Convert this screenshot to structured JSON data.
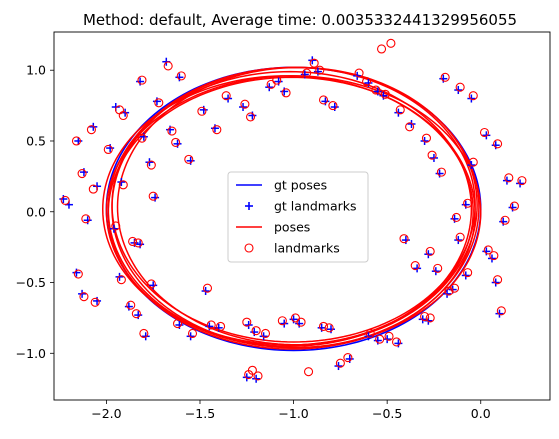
{
  "chart_data": {
    "type": "scatter",
    "title": "Method: default, Average time: 0.0035332441329956055",
    "xlabel": "",
    "ylabel": "",
    "xlim": [
      -2.28,
      0.37
    ],
    "ylim": [
      -1.33,
      1.27
    ],
    "grid": false,
    "x_ticks": [
      -2.0,
      -1.5,
      -1.0,
      -0.5,
      0.0
    ],
    "x_tick_labels": [
      "−2.0",
      "−1.5",
      "−1.0",
      "−0.5",
      "0.0"
    ],
    "y_ticks": [
      -1.0,
      -0.5,
      0.0,
      0.5,
      1.0
    ],
    "y_tick_labels": [
      "−1.0",
      "−0.5",
      "0.0",
      "0.5",
      "1.0"
    ],
    "legend_position": "center",
    "legend": [
      {
        "label": "gt poses",
        "style": "line",
        "color": "#0000ff"
      },
      {
        "label": "gt landmarks",
        "style": "plus",
        "color": "#0000ff"
      },
      {
        "label": "poses",
        "style": "line",
        "color": "#ff0000"
      },
      {
        "label": "landmarks",
        "style": "circle",
        "color": "#ff0000"
      }
    ],
    "series": [
      {
        "name": "gt poses",
        "kind": "ellipse",
        "color": "#0000ff",
        "center": [
          -1.0,
          0.02
        ],
        "radii": [
          1.0,
          1.0
        ],
        "rotation_deg": 0
      },
      {
        "name": "poses",
        "kind": "ellipse_loops",
        "color": "#ff0000",
        "loops": [
          {
            "center": [
              -1.02,
              0.02
            ],
            "radii": [
              0.97,
              0.97
            ],
            "rotation_deg": -4
          },
          {
            "center": [
              -0.99,
              0.03
            ],
            "radii": [
              0.98,
              0.99
            ],
            "rotation_deg": -8
          },
          {
            "center": [
              -1.0,
              0.0
            ],
            "radii": [
              1.0,
              0.96
            ],
            "rotation_deg": -3
          },
          {
            "center": [
              -0.98,
              0.04
            ],
            "radii": [
              0.96,
              0.98
            ],
            "rotation_deg": -10
          },
          {
            "center": [
              -1.03,
              0.01
            ],
            "radii": [
              0.99,
              0.95
            ],
            "rotation_deg": -6
          },
          {
            "center": [
              -1.0,
              0.05
            ],
            "radii": [
              0.97,
              0.97
            ],
            "rotation_deg": -12
          },
          {
            "center": [
              -1.01,
              -0.01
            ],
            "radii": [
              0.98,
              0.96
            ],
            "rotation_deg": -2
          }
        ]
      },
      {
        "name": "gt landmarks",
        "kind": "plus",
        "color": "#0000ff",
        "points": [
          [
            -2.23,
            0.09
          ],
          [
            -2.15,
            0.5
          ],
          [
            -2.07,
            0.6
          ],
          [
            -2.12,
            0.28
          ],
          [
            -2.05,
            0.18
          ],
          [
            -2.1,
            -0.06
          ],
          [
            -2.16,
            -0.43
          ],
          [
            -2.13,
            -0.58
          ],
          [
            -2.05,
            -0.63
          ],
          [
            -1.95,
            0.74
          ],
          [
            -1.9,
            0.7
          ],
          [
            -1.98,
            0.45
          ],
          [
            -1.92,
            0.21
          ],
          [
            -1.96,
            -0.12
          ],
          [
            -1.85,
            -0.22
          ],
          [
            -1.93,
            -0.46
          ],
          [
            -1.88,
            -0.67
          ],
          [
            -1.83,
            -0.73
          ],
          [
            -1.82,
            0.92
          ],
          [
            -1.73,
            0.78
          ],
          [
            -1.8,
            0.53
          ],
          [
            -1.77,
            0.35
          ],
          [
            -1.74,
            0.1
          ],
          [
            -1.82,
            -0.23
          ],
          [
            -1.75,
            -0.52
          ],
          [
            -1.79,
            -0.88
          ],
          [
            -1.68,
            1.06
          ],
          [
            -1.61,
            0.95
          ],
          [
            -1.62,
            0.48
          ],
          [
            -1.55,
            0.36
          ],
          [
            -1.66,
            0.58
          ],
          [
            -1.61,
            -0.8
          ],
          [
            -1.55,
            -0.88
          ],
          [
            -1.48,
            0.72
          ],
          [
            -1.42,
            0.59
          ],
          [
            -1.47,
            -0.56
          ],
          [
            -1.45,
            -0.81
          ],
          [
            -1.4,
            -0.82
          ],
          [
            -1.35,
            0.8
          ],
          [
            -1.27,
            0.74
          ],
          [
            -1.22,
            0.68
          ],
          [
            -1.24,
            -0.8
          ],
          [
            -1.21,
            -0.85
          ],
          [
            -1.25,
            -1.17
          ],
          [
            -1.2,
            -1.18
          ],
          [
            -1.16,
            -0.88
          ],
          [
            -1.13,
            0.88
          ],
          [
            -1.08,
            0.92
          ],
          [
            -1.05,
            0.85
          ],
          [
            -1.05,
            -0.79
          ],
          [
            -1.0,
            -0.76
          ],
          [
            -0.97,
            -0.79
          ],
          [
            -0.94,
            0.97
          ],
          [
            -0.9,
            1.07
          ],
          [
            -0.87,
            0.99
          ],
          [
            -0.83,
            0.78
          ],
          [
            -0.78,
            0.74
          ],
          [
            -0.85,
            -0.82
          ],
          [
            -0.8,
            -0.83
          ],
          [
            -0.76,
            -1.09
          ],
          [
            -0.7,
            -1.04
          ],
          [
            -0.66,
            0.96
          ],
          [
            -0.6,
            0.91
          ],
          [
            -0.55,
            0.85
          ],
          [
            -0.52,
            0.82
          ],
          [
            -0.6,
            -0.88
          ],
          [
            -0.55,
            -0.91
          ],
          [
            -0.5,
            -0.9
          ],
          [
            -0.44,
            -0.93
          ],
          [
            -0.44,
            0.7
          ],
          [
            -0.37,
            0.62
          ],
          [
            -0.4,
            -0.2
          ],
          [
            -0.34,
            -0.4
          ],
          [
            -0.31,
            -0.76
          ],
          [
            -0.28,
            -0.77
          ],
          [
            -0.2,
            0.94
          ],
          [
            -0.12,
            0.86
          ],
          [
            -0.05,
            0.8
          ],
          [
            -0.3,
            0.5
          ],
          [
            -0.25,
            0.38
          ],
          [
            -0.22,
            0.27
          ],
          [
            -0.28,
            -0.3
          ],
          [
            -0.24,
            -0.42
          ],
          [
            -0.18,
            -0.58
          ],
          [
            -0.15,
            -0.55
          ],
          [
            -0.08,
            -0.45
          ],
          [
            -0.12,
            -0.2
          ],
          [
            -0.14,
            -0.05
          ],
          [
            -0.08,
            0.05
          ],
          [
            -0.05,
            0.33
          ],
          [
            0.03,
            0.54
          ],
          [
            0.08,
            0.47
          ],
          [
            0.03,
            -0.28
          ],
          [
            0.06,
            -0.33
          ],
          [
            0.08,
            -0.5
          ],
          [
            0.1,
            -0.72
          ],
          [
            0.14,
            0.22
          ],
          [
            0.17,
            0.03
          ],
          [
            0.21,
            0.2
          ],
          [
            0.12,
            -0.07
          ],
          [
            -2.2,
            0.05
          ]
        ]
      },
      {
        "name": "landmarks",
        "kind": "circle",
        "color": "#ff0000",
        "points": [
          [
            -2.22,
            0.08
          ],
          [
            -2.16,
            0.5
          ],
          [
            -2.08,
            0.58
          ],
          [
            -2.13,
            0.27
          ],
          [
            -2.07,
            0.16
          ],
          [
            -2.11,
            -0.05
          ],
          [
            -2.15,
            -0.44
          ],
          [
            -2.12,
            -0.6
          ],
          [
            -2.06,
            -0.64
          ],
          [
            -1.93,
            0.72
          ],
          [
            -1.91,
            0.68
          ],
          [
            -1.99,
            0.44
          ],
          [
            -1.91,
            0.19
          ],
          [
            -1.95,
            -0.1
          ],
          [
            -1.86,
            -0.21
          ],
          [
            -1.92,
            -0.48
          ],
          [
            -1.87,
            -0.66
          ],
          [
            -1.84,
            -0.72
          ],
          [
            -1.81,
            0.93
          ],
          [
            -1.72,
            0.77
          ],
          [
            -1.81,
            0.52
          ],
          [
            -1.76,
            0.33
          ],
          [
            -1.75,
            0.11
          ],
          [
            -1.83,
            -0.22
          ],
          [
            -1.76,
            -0.51
          ],
          [
            -1.8,
            -0.86
          ],
          [
            -1.67,
            1.03
          ],
          [
            -1.6,
            0.96
          ],
          [
            -1.63,
            0.49
          ],
          [
            -1.56,
            0.37
          ],
          [
            -1.65,
            0.57
          ],
          [
            -1.62,
            -0.79
          ],
          [
            -1.54,
            -0.86
          ],
          [
            -1.49,
            0.71
          ],
          [
            -1.41,
            0.58
          ],
          [
            -1.46,
            -0.54
          ],
          [
            -1.44,
            -0.8
          ],
          [
            -1.39,
            -0.81
          ],
          [
            -1.36,
            0.82
          ],
          [
            -1.26,
            0.76
          ],
          [
            -1.23,
            0.67
          ],
          [
            -1.25,
            -0.78
          ],
          [
            -1.2,
            -0.84
          ],
          [
            -1.24,
            -1.15
          ],
          [
            -1.19,
            -1.16
          ],
          [
            -1.15,
            -0.86
          ],
          [
            -1.12,
            0.9
          ],
          [
            -1.09,
            0.93
          ],
          [
            -1.04,
            0.84
          ],
          [
            -1.06,
            -0.77
          ],
          [
            -0.99,
            -0.75
          ],
          [
            -0.96,
            -0.78
          ],
          [
            -0.93,
            0.98
          ],
          [
            -0.89,
            1.05
          ],
          [
            -0.86,
            1.0
          ],
          [
            -0.84,
            0.79
          ],
          [
            -0.79,
            0.75
          ],
          [
            -0.84,
            -0.81
          ],
          [
            -0.81,
            -0.82
          ],
          [
            -0.75,
            -1.07
          ],
          [
            -0.71,
            -1.03
          ],
          [
            -0.65,
            0.98
          ],
          [
            -0.61,
            0.92
          ],
          [
            -0.56,
            0.86
          ],
          [
            -0.51,
            0.83
          ],
          [
            -0.59,
            -0.86
          ],
          [
            -0.54,
            -0.9
          ],
          [
            -0.49,
            -0.88
          ],
          [
            -0.45,
            -0.92
          ],
          [
            -0.43,
            0.72
          ],
          [
            -0.38,
            0.6
          ],
          [
            -0.41,
            -0.19
          ],
          [
            -0.35,
            -0.38
          ],
          [
            -0.3,
            -0.74
          ],
          [
            -0.27,
            -0.75
          ],
          [
            -0.19,
            0.95
          ],
          [
            -0.11,
            0.88
          ],
          [
            -0.04,
            0.82
          ],
          [
            -0.29,
            0.52
          ],
          [
            -0.26,
            0.4
          ],
          [
            -0.21,
            0.28
          ],
          [
            -0.27,
            -0.28
          ],
          [
            -0.23,
            -0.4
          ],
          [
            -0.17,
            -0.56
          ],
          [
            -0.14,
            -0.54
          ],
          [
            -0.07,
            -0.43
          ],
          [
            -0.11,
            -0.18
          ],
          [
            -0.13,
            -0.04
          ],
          [
            -0.07,
            0.06
          ],
          [
            -0.04,
            0.35
          ],
          [
            0.02,
            0.56
          ],
          [
            0.09,
            0.48
          ],
          [
            0.04,
            -0.27
          ],
          [
            0.07,
            -0.31
          ],
          [
            0.09,
            -0.48
          ],
          [
            0.11,
            -0.7
          ],
          [
            0.15,
            0.24
          ],
          [
            0.18,
            0.04
          ],
          [
            0.22,
            0.22
          ],
          [
            0.13,
            -0.06
          ],
          [
            -0.53,
            1.15
          ],
          [
            -0.48,
            1.19
          ],
          [
            -0.92,
            -1.13
          ],
          [
            -1.22,
            -1.12
          ]
        ]
      }
    ]
  }
}
